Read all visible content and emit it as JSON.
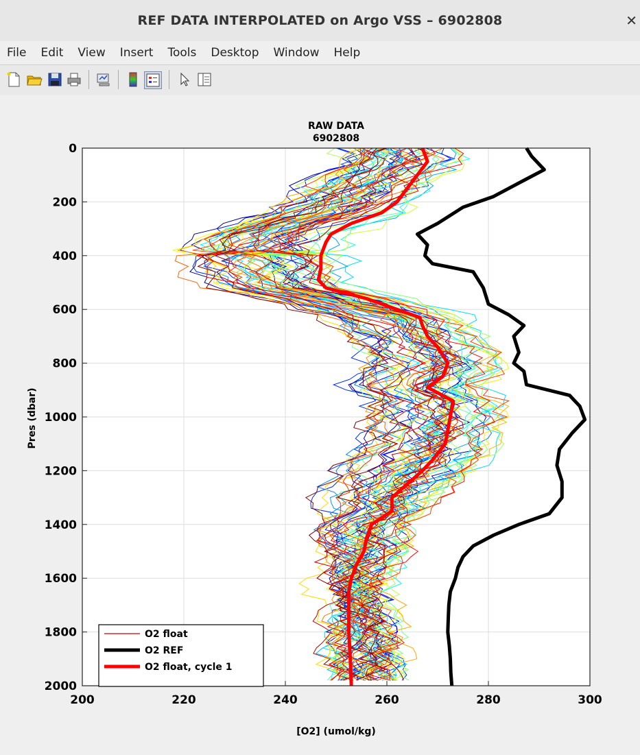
{
  "window": {
    "title": "REF DATA INTERPOLATED on Argo VSS – 6902808"
  },
  "menu": [
    "File",
    "Edit",
    "View",
    "Insert",
    "Tools",
    "Desktop",
    "Window",
    "Help"
  ],
  "toolbar": [
    "new-figure-icon",
    "open-file-icon",
    "save-icon",
    "print-icon",
    "link-plot-icon",
    "colorbar-icon",
    "legend-icon",
    "pointer-icon",
    "property-inspector-icon"
  ],
  "chart_data": {
    "type": "line",
    "title": "RAW DATA",
    "subtitle": "6902808",
    "xlabel": "[O2] (umol/kg)",
    "ylabel": "Pres (dbar)",
    "xlim": [
      200,
      300
    ],
    "ylim": [
      0,
      2000
    ],
    "y_reversed": true,
    "grid": true,
    "xticks": [
      200,
      220,
      240,
      260,
      280,
      300
    ],
    "yticks": [
      0,
      200,
      400,
      600,
      800,
      1000,
      1200,
      1400,
      1600,
      1800,
      2000
    ],
    "legend_position": "bottom-left",
    "legend": [
      "O2 float",
      "O2 REF",
      "O2 float, cycle 1"
    ],
    "colors": {
      "float": "#cc0000",
      "ref": "#000000",
      "cycle1": "#ff0000"
    },
    "float_profile_count": 60,
    "series": [
      {
        "name": "O2 REF",
        "color": "#000000",
        "pressure": [
          0,
          30,
          80,
          120,
          180,
          220,
          280,
          300,
          320,
          360,
          400,
          430,
          460,
          520,
          580,
          620,
          660,
          700,
          760,
          800,
          830,
          880,
          920,
          960,
          1010,
          1060,
          1120,
          1180,
          1240,
          1300,
          1360,
          1400,
          1440,
          1480,
          1520,
          1560,
          1600,
          1650,
          1700,
          1750,
          1800,
          1850,
          1900,
          1950,
          2000
        ],
        "o2": [
          287.5,
          288.5,
          291,
          287,
          281,
          275,
          270,
          268,
          266,
          268,
          267.5,
          269,
          277,
          279,
          280,
          284,
          287,
          285,
          286,
          285,
          287,
          287.5,
          296,
          298,
          299,
          296.5,
          294,
          293.5,
          294.5,
          294.5,
          292,
          286,
          281,
          277,
          275,
          274,
          273.5,
          272.5,
          272.2,
          272.1,
          272,
          272.3,
          272.5,
          272.6,
          272.8
        ]
      },
      {
        "name": "O2 float, cycle 1",
        "color": "#ff0000",
        "pressure": [
          0,
          50,
          100,
          150,
          200,
          240,
          280,
          320,
          350,
          400,
          450,
          490,
          520,
          560,
          600,
          630,
          660,
          700,
          740,
          800,
          850,
          890,
          940,
          1000,
          1050,
          1100,
          1160,
          1200,
          1250,
          1300,
          1350,
          1400,
          1450,
          1500,
          1550,
          1600,
          1650,
          1700,
          1800,
          1900,
          2000
        ],
        "o2": [
          267,
          268,
          266,
          264,
          262,
          259,
          253,
          249,
          248,
          247,
          247,
          246.5,
          248,
          256,
          262,
          266.5,
          267,
          268,
          270,
          272,
          271,
          268,
          273,
          272.5,
          272,
          271.5,
          269,
          267,
          264,
          261,
          261,
          257,
          256,
          255.5,
          254,
          253,
          252.5,
          252.5,
          252.5,
          252.8,
          253
        ]
      }
    ]
  }
}
